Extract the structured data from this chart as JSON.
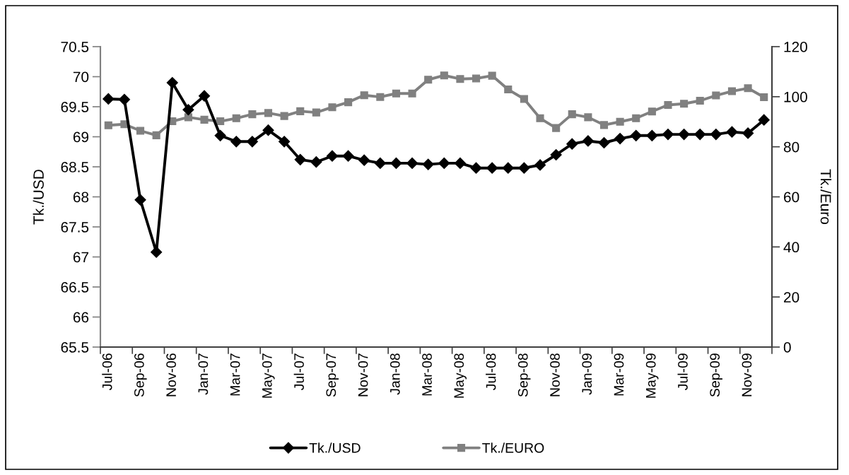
{
  "chart_data": {
    "type": "line",
    "categories": [
      "Jul-06",
      null,
      "Sep-06",
      null,
      "Nov-06",
      null,
      "Jan-07",
      null,
      "Mar-07",
      null,
      "May-07",
      null,
      "Jul-07",
      null,
      "Sep-07",
      null,
      "Nov-07",
      null,
      "Jan-08",
      null,
      "Mar-08",
      null,
      "May-08",
      null,
      "Jul-08",
      null,
      "Sep-08",
      null,
      "Nov-08",
      null,
      "Jan-09",
      null,
      "Mar-09",
      null,
      "May-09",
      null,
      "Jul-09",
      null,
      "Sep-09",
      null,
      "Nov-09",
      null
    ],
    "ylabel": "Tk./USD",
    "y2label": "Tk./Euro",
    "ylim": [
      65.5,
      70.5
    ],
    "yticks": [
      65.5,
      66,
      66.5,
      67,
      67.5,
      68,
      68.5,
      69,
      69.5,
      70,
      70.5
    ],
    "y2lim": [
      0,
      120
    ],
    "y2ticks": [
      0,
      20,
      40,
      60,
      80,
      100,
      120
    ],
    "series": [
      {
        "name": "Tk./USD",
        "color": "#000000",
        "marker": "diamond",
        "values": [
          69.63,
          69.62,
          67.95,
          67.08,
          69.9,
          69.45,
          69.68,
          69.02,
          68.92,
          68.92,
          69.11,
          68.92,
          68.62,
          68.58,
          68.68,
          68.68,
          68.61,
          68.56,
          68.56,
          68.56,
          68.54,
          68.56,
          68.56,
          68.48,
          68.48,
          68.48,
          68.48,
          68.53,
          68.7,
          68.88,
          68.93,
          68.9,
          68.97,
          69.02,
          69.02,
          69.04,
          69.04,
          69.04,
          69.04,
          69.08,
          69.06,
          69.28
        ]
      },
      {
        "name": "Tk./EURO",
        "color": "#808080",
        "marker": "square",
        "axis": "y2",
        "values": [
          88.6,
          89,
          86.4,
          84.6,
          90.2,
          91.8,
          90.8,
          90.2,
          91.4,
          93,
          93.5,
          92.3,
          94.2,
          93.7,
          95.8,
          97.8,
          100.6,
          99.9,
          101.3,
          101.3,
          106.8,
          108.5,
          107.1,
          107.3,
          108.4,
          102.9,
          99.1,
          91.4,
          87.5,
          93,
          91.8,
          88.7,
          90,
          91.4,
          94.1,
          96.7,
          97.2,
          98.4,
          100.5,
          102.2,
          103.4,
          99.8
        ]
      }
    ],
    "legend": "bottom",
    "grid": false,
    "line_style": "solid"
  }
}
